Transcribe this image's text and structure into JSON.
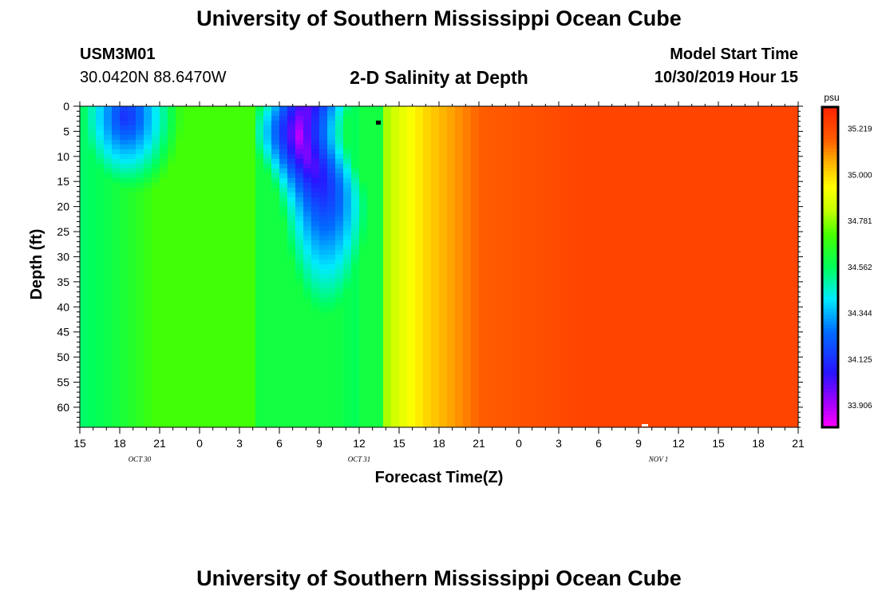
{
  "header": {
    "title": "University of Southern Mississippi Ocean Cube",
    "station_id": "USM3M01",
    "coordinates": "30.0420N 88.6470W",
    "plot_title": "2-D Salinity at Depth",
    "model_start_label": "Model Start Time",
    "model_start_value": "10/30/2019 Hour 15",
    "footer_title": "University of Southern Mississippi Ocean Cube"
  },
  "chart_data": {
    "type": "heatmap",
    "title": "2-D Salinity at Depth",
    "xlabel": "Forecast Time(Z)",
    "ylabel": "Depth (ft)",
    "x_hours_since_start": [
      0,
      3,
      6,
      9,
      12,
      15,
      18,
      21,
      24,
      27,
      30,
      33,
      36,
      39,
      42,
      45,
      48,
      51,
      54
    ],
    "x_tick_labels": [
      "15",
      "18",
      "21",
      "0",
      "3",
      "6",
      "9",
      "12",
      "15",
      "18",
      "21",
      "0",
      "3",
      "6",
      "9",
      "12",
      "15",
      "18",
      "21"
    ],
    "date_labels": [
      {
        "text": "OCT 30",
        "at_hour": 4.5
      },
      {
        "text": "OCT 31",
        "at_hour": 21
      },
      {
        "text": "NOV 1",
        "at_hour": 43.5
      }
    ],
    "xlim": [
      0,
      54
    ],
    "y_ticks": [
      0,
      5,
      10,
      15,
      20,
      25,
      30,
      35,
      40,
      45,
      50,
      55,
      60
    ],
    "ylim": [
      0,
      64
    ],
    "y_inverted": true,
    "colorbar": {
      "unit": "psu",
      "min": 33.8,
      "max": 35.32,
      "tick_values": [
        33.906,
        34.125,
        34.344,
        34.562,
        34.781,
        35.0,
        35.219
      ],
      "tick_labels": [
        "33.906",
        "34.125",
        "34.344",
        "34.562",
        "34.781",
        "35.000",
        "35.219"
      ]
    },
    "grid": false
  }
}
